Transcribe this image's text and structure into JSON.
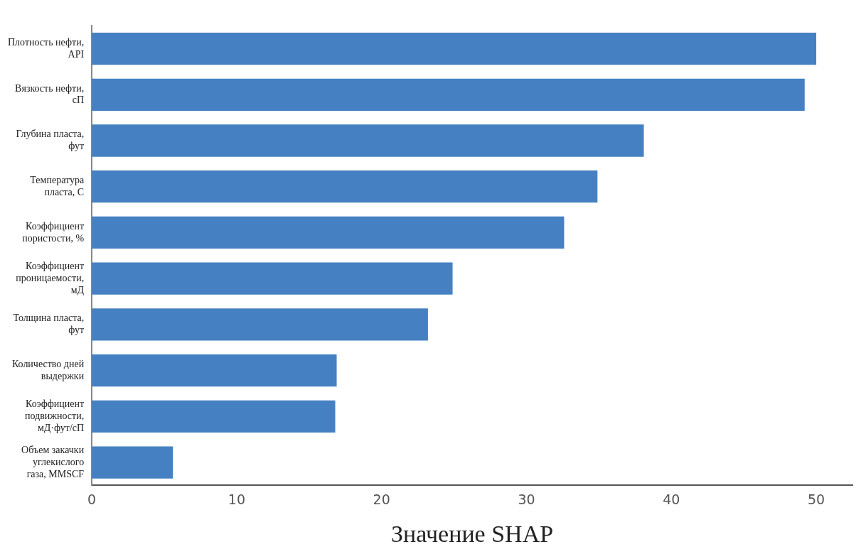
{
  "chart_data": {
    "type": "bar",
    "orientation": "horizontal",
    "xlabel": "Значение SHAP",
    "categories": [
      "Плотность нефти, API",
      "Вязкость нефти, сП",
      "Глубина пласта, фут",
      "Температура пласта, С",
      "Коэффициент пористости, %",
      "Коэффициент проницаемости, мД",
      "Толщина пласта, фут",
      "Количество дней выдержки",
      "Коэффициент подвижности, мД·фут/сП",
      "Объем закачки углекислого газа, MMSCF"
    ],
    "values": [
      50.0,
      49.2,
      38.1,
      34.9,
      32.6,
      24.9,
      23.2,
      16.9,
      16.8,
      5.6
    ],
    "color": "#4581c2",
    "xlim": [
      0,
      52.5
    ],
    "xticks": [
      0,
      10,
      20,
      30,
      40,
      50
    ],
    "grid": false,
    "legend": false
  }
}
